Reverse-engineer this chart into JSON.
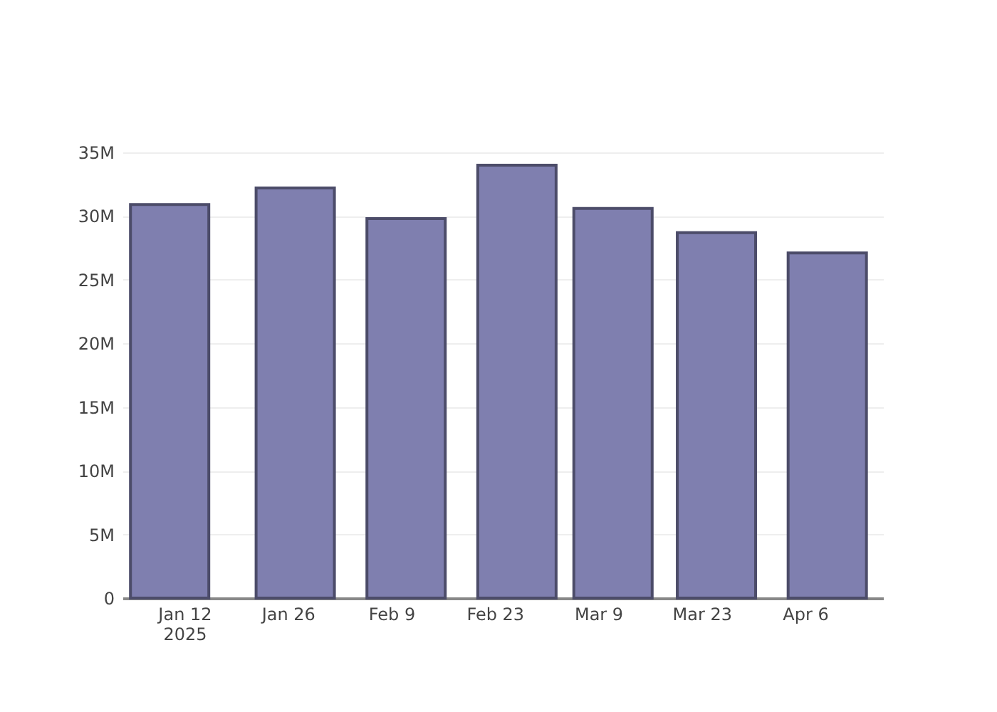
{
  "chart_data": {
    "type": "bar",
    "x": [
      "2025-01-10",
      "2025-01-27",
      "2025-02-11",
      "2025-02-26",
      "2025-03-11",
      "2025-03-25",
      "2025-04-09"
    ],
    "values": [
      30900000,
      32200000,
      29800000,
      34000000,
      30600000,
      28700000,
      27100000
    ],
    "color": "#7f7faf",
    "xlim": [
      "2025-01-04T14:00",
      "2025-04-15T14:00"
    ],
    "xticks": [
      {
        "value": "2025-01-12",
        "label": "Jan 12\n2025"
      },
      {
        "value": "2025-01-26",
        "label": "Jan 26"
      },
      {
        "value": "2025-02-09",
        "label": "Feb 9"
      },
      {
        "value": "2025-02-23",
        "label": "Feb 23"
      },
      {
        "value": "2025-03-09",
        "label": "Mar 9"
      },
      {
        "value": "2025-03-23",
        "label": "Mar 23"
      },
      {
        "value": "2025-04-06",
        "label": "Apr 6"
      }
    ],
    "ylim": [
      0,
      35000000
    ],
    "yticks": [
      0,
      {
        "value": 5000000,
        "label": "5M"
      },
      {
        "value": 10000000,
        "label": "10M"
      },
      {
        "value": 15000000,
        "label": "15M"
      },
      {
        "value": 20000000,
        "label": "20M"
      },
      {
        "value": 25000000,
        "label": "25M"
      },
      {
        "value": 30000000,
        "label": "30M"
      },
      {
        "value": 35000000,
        "label": "35M"
      }
    ],
    "grid": "y"
  }
}
